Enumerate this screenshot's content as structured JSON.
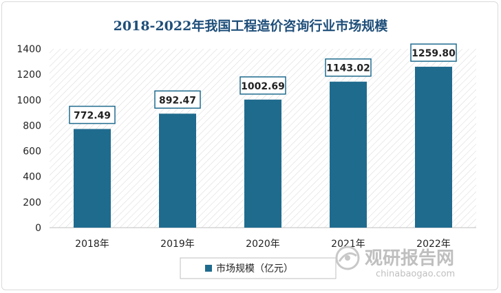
{
  "chart_data": {
    "type": "bar",
    "title": "2018-2022年我国工程造价咨询行业市场规模",
    "categories": [
      "2018年",
      "2019年",
      "2020年",
      "2021年",
      "2022年"
    ],
    "series": [
      {
        "name": "市场规模（亿元）",
        "values": [
          772.49,
          892.47,
          1002.69,
          1143.02,
          1259.8
        ],
        "labels": [
          "772.49",
          "892.47",
          "1002.69",
          "1143.02",
          "1259.80"
        ],
        "color": "#1f6b8e"
      }
    ],
    "ylim": [
      0,
      1400
    ],
    "yticks": [
      "0",
      "200",
      "400",
      "600",
      "800",
      "1000",
      "1200",
      "1400"
    ],
    "ytick_values": [
      0,
      200,
      400,
      600,
      800,
      1000,
      1200,
      1400
    ],
    "grid": false,
    "legend_position": "bottom"
  },
  "watermark": {
    "brand": "观研报告网",
    "url": "chinabaogao.com"
  },
  "colors": {
    "title": "#1e4e79",
    "bar": "#1f6b8e",
    "label_border": "#1f6b8e",
    "hatch": "#d9d9d9"
  }
}
